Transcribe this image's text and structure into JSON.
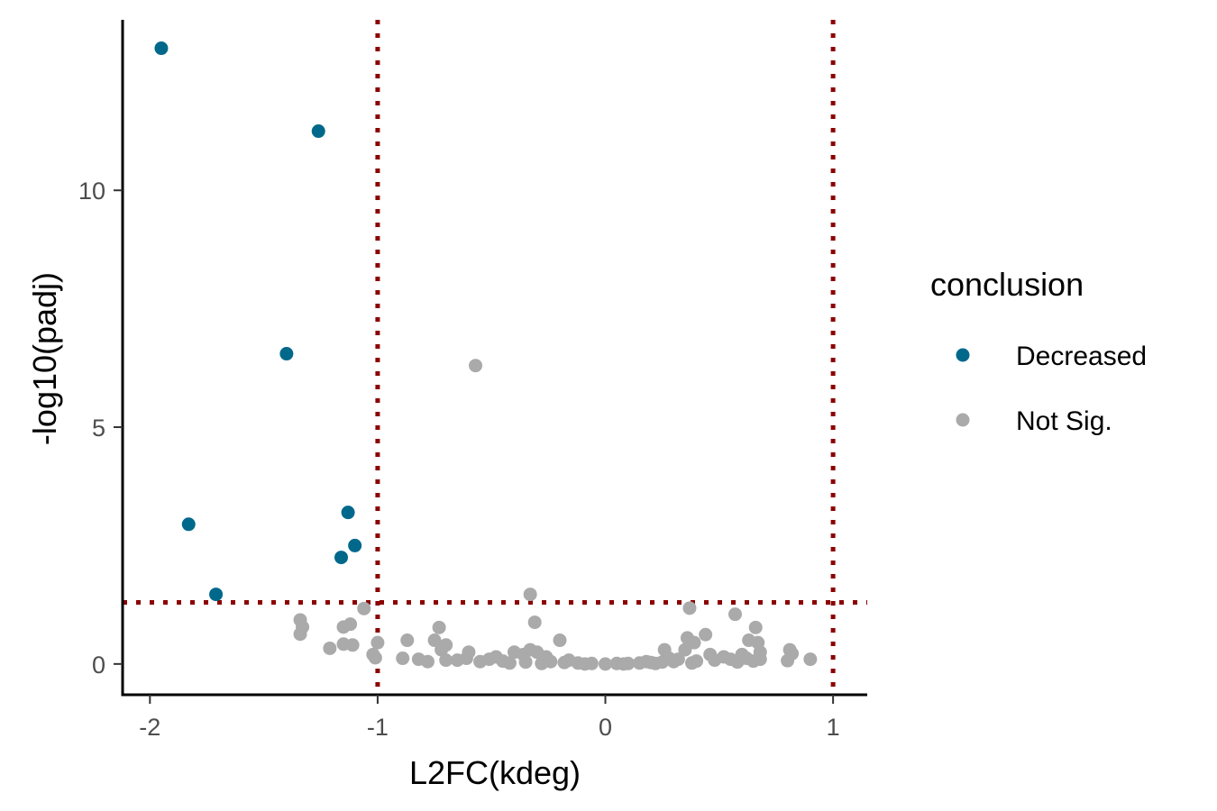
{
  "chart_data": {
    "type": "scatter",
    "xlabel": "L2FC(kdeg)",
    "ylabel": "-log10(padj)",
    "xlim": [
      -2.12,
      1.15
    ],
    "ylim": [
      -0.65,
      13.6
    ],
    "x_ticks": [
      {
        "value": -2,
        "label": "-2"
      },
      {
        "value": -1,
        "label": "-1"
      },
      {
        "value": 0,
        "label": "0"
      },
      {
        "value": 1,
        "label": "1"
      }
    ],
    "y_ticks": [
      {
        "value": 0,
        "label": "0"
      },
      {
        "value": 5,
        "label": "5"
      },
      {
        "value": 10,
        "label": "10"
      }
    ],
    "grid": false,
    "legend_position": "right",
    "thresholds": {
      "vertical": [
        -1,
        1
      ],
      "horizontal": [
        1.3
      ],
      "color": "#8b0000"
    },
    "legend": {
      "title": "conclusion",
      "entries": [
        {
          "label": "Decreased",
          "color": "#00688b"
        },
        {
          "label": "Not Sig.",
          "color": "#aaaaaa"
        }
      ]
    },
    "series": [
      {
        "name": "Decreased",
        "color": "#00688b",
        "points": [
          [
            -1.95,
            13.0
          ],
          [
            -1.26,
            11.25
          ],
          [
            -1.4,
            6.55
          ],
          [
            -1.83,
            2.95
          ],
          [
            -1.13,
            3.2
          ],
          [
            -1.1,
            2.5
          ],
          [
            -1.16,
            2.25
          ],
          [
            -1.71,
            1.47
          ]
        ]
      },
      {
        "name": "Not Sig.",
        "color": "#aaaaaa",
        "points": [
          [
            -0.57,
            6.3
          ],
          [
            -0.33,
            1.47
          ],
          [
            0.37,
            1.18
          ],
          [
            0.57,
            1.05
          ],
          [
            -1.34,
            0.93
          ],
          [
            -1.33,
            0.78
          ],
          [
            -1.34,
            0.63
          ],
          [
            -1.15,
            0.78
          ],
          [
            -1.12,
            0.84
          ],
          [
            -1.06,
            1.17
          ],
          [
            -1.21,
            0.33
          ],
          [
            -1.15,
            0.42
          ],
          [
            -1.11,
            0.4
          ],
          [
            -1.02,
            0.2
          ],
          [
            -1.01,
            0.13
          ],
          [
            -1.0,
            0.45
          ],
          [
            -0.31,
            0.88
          ],
          [
            -0.73,
            0.77
          ],
          [
            -0.87,
            0.5
          ],
          [
            -0.75,
            0.5
          ],
          [
            -0.7,
            0.4
          ],
          [
            -0.72,
            0.3
          ],
          [
            -0.6,
            0.25
          ],
          [
            -0.2,
            0.5
          ],
          [
            0.44,
            0.62
          ],
          [
            0.36,
            0.55
          ],
          [
            0.39,
            0.45
          ],
          [
            0.26,
            0.3
          ],
          [
            0.35,
            0.3
          ],
          [
            0.46,
            0.2
          ],
          [
            0.63,
            0.5
          ],
          [
            0.66,
            0.77
          ],
          [
            0.67,
            0.45
          ],
          [
            0.68,
            0.25
          ],
          [
            0.6,
            0.2
          ],
          [
            0.81,
            0.3
          ],
          [
            0.82,
            0.22
          ],
          [
            0.9,
            0.1
          ],
          [
            0.8,
            0.07
          ],
          [
            -0.89,
            0.12
          ],
          [
            -0.82,
            0.1
          ],
          [
            -0.61,
            0.12
          ],
          [
            -0.51,
            0.1
          ],
          [
            -0.4,
            0.25
          ],
          [
            -0.36,
            0.2
          ],
          [
            -0.33,
            0.3
          ],
          [
            -0.3,
            0.25
          ],
          [
            -0.26,
            0.15
          ],
          [
            -0.65,
            0.08
          ],
          [
            -0.55,
            0.05
          ],
          [
            -0.45,
            0.06
          ],
          [
            -0.35,
            0.04
          ],
          [
            -0.24,
            0.05
          ],
          [
            -0.18,
            0.03
          ],
          [
            -0.12,
            0.02
          ],
          [
            -0.06,
            0.01
          ],
          [
            0.0,
            0.0
          ],
          [
            0.05,
            0.01
          ],
          [
            0.1,
            0.01
          ],
          [
            0.15,
            0.02
          ],
          [
            0.2,
            0.03
          ],
          [
            0.25,
            0.04
          ],
          [
            0.3,
            0.05
          ],
          [
            0.4,
            0.06
          ],
          [
            0.48,
            0.08
          ],
          [
            0.55,
            0.1
          ],
          [
            0.62,
            0.12
          ],
          [
            0.68,
            0.1
          ],
          [
            -0.78,
            0.05
          ],
          [
            -0.7,
            0.08
          ],
          [
            -0.48,
            0.15
          ],
          [
            -0.16,
            0.08
          ],
          [
            0.18,
            0.05
          ],
          [
            0.28,
            0.12
          ],
          [
            0.52,
            0.15
          ],
          [
            0.32,
            0.1
          ],
          [
            -0.42,
            0.02
          ],
          [
            -0.28,
            0.01
          ],
          [
            -0.09,
            0.0
          ],
          [
            0.08,
            0.0
          ],
          [
            0.22,
            0.01
          ],
          [
            0.38,
            0.02
          ],
          [
            0.58,
            0.04
          ],
          [
            0.65,
            0.06
          ]
        ]
      }
    ]
  }
}
